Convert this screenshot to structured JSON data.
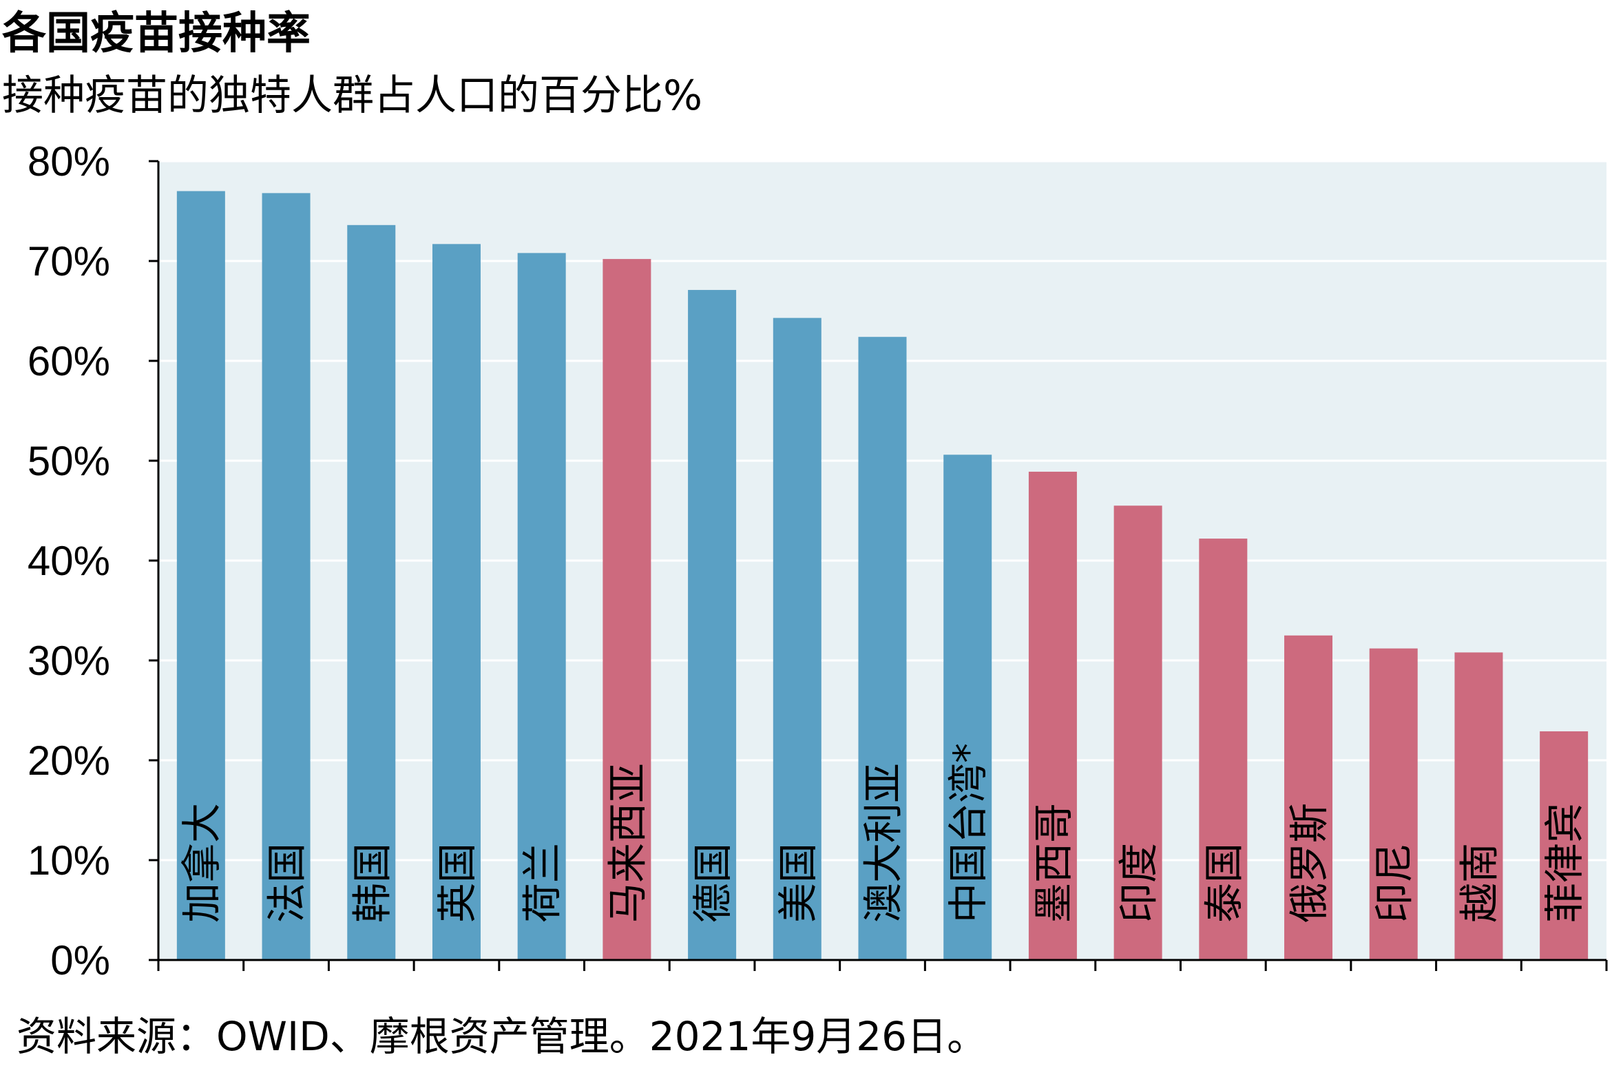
{
  "title": "各国疫苗接种率",
  "subtitle": "接种疫苗的独特人群占人口的百分比%",
  "source": "资料来源：OWID、摩根资产管理。2021年9月26日。",
  "colors": {
    "plot_background": "#e8f1f4",
    "gridline": "#ffffff",
    "bar_blue": "#5aa0c4",
    "bar_red": "#cd6a7e",
    "axis": "#000000"
  },
  "chart_data": {
    "type": "bar",
    "title": "各国疫苗接种率",
    "subtitle": "接种疫苗的独特人群占人口的百分比%",
    "ylim": [
      0,
      80
    ],
    "yticks": [
      0,
      10,
      20,
      30,
      40,
      50,
      60,
      70,
      80
    ],
    "ytick_labels": [
      "0%",
      "10%",
      "20%",
      "30%",
      "40%",
      "50%",
      "60%",
      "70%",
      "80%"
    ],
    "grid": true,
    "categories": [
      "加拿大",
      "法国",
      "韩国",
      "英国",
      "荷兰",
      "马来西亚",
      "德国",
      "美国",
      "澳大利亚",
      "中国台湾*",
      "墨西哥",
      "印度",
      "泰国",
      "俄罗斯",
      "印尼",
      "越南",
      "菲律宾"
    ],
    "values": [
      77.0,
      76.8,
      73.6,
      71.7,
      70.8,
      70.2,
      67.1,
      64.3,
      62.4,
      50.6,
      48.9,
      45.5,
      42.2,
      32.5,
      31.2,
      30.8,
      22.9
    ],
    "bar_colors": [
      "blue",
      "blue",
      "blue",
      "blue",
      "blue",
      "red",
      "blue",
      "blue",
      "blue",
      "blue",
      "red",
      "red",
      "red",
      "red",
      "red",
      "red",
      "red"
    ]
  }
}
